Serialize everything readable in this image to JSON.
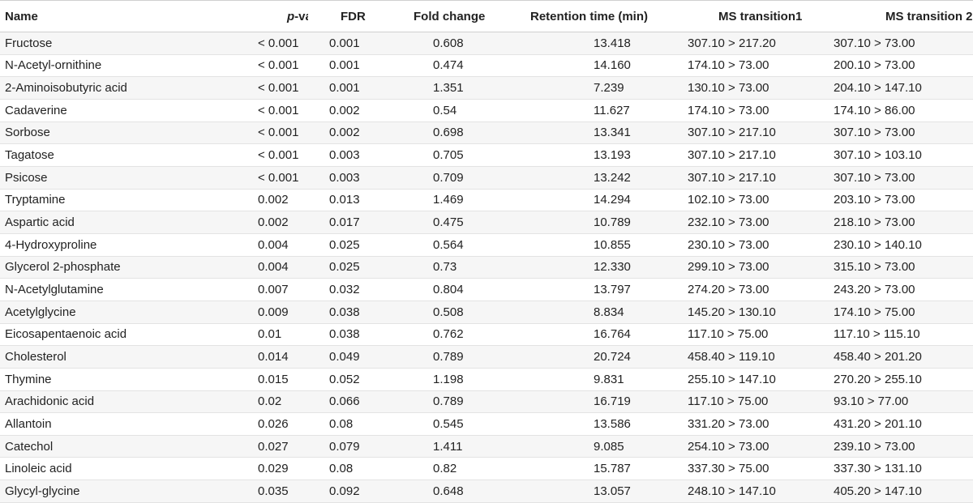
{
  "headers": {
    "name": "Name",
    "p_value_italic": "p",
    "p_value_rest": "-value",
    "fdr": "FDR",
    "fold_change": "Fold change",
    "retention_time": "Retention time (min)",
    "ms_transition1": "MS transition1",
    "ms_transition2": "MS transition 2"
  },
  "rows": [
    {
      "name": "Fructose",
      "p": "< 0.001",
      "fdr": "0.001",
      "fc": "0.608",
      "rt": "13.418",
      "ms1": "307.10 > 217.20",
      "ms2": "307.10 > 73.00"
    },
    {
      "name": "N-Acetyl-ornithine",
      "p": "< 0.001",
      "fdr": "0.001",
      "fc": "0.474",
      "rt": "14.160",
      "ms1": "174.10 > 73.00",
      "ms2": "200.10 > 73.00"
    },
    {
      "name": "2-Aminoisobutyric acid",
      "p": "< 0.001",
      "fdr": "0.001",
      "fc": "1.351",
      "rt": "7.239",
      "ms1": "130.10 > 73.00",
      "ms2": "204.10 > 147.10"
    },
    {
      "name": "Cadaverine",
      "p": "< 0.001",
      "fdr": "0.002",
      "fc": "0.54",
      "rt": "11.627",
      "ms1": "174.10 > 73.00",
      "ms2": "174.10 > 86.00"
    },
    {
      "name": "Sorbose",
      "p": "< 0.001",
      "fdr": "0.002",
      "fc": "0.698",
      "rt": "13.341",
      "ms1": "307.10 > 217.10",
      "ms2": "307.10 > 73.00"
    },
    {
      "name": "Tagatose",
      "p": "< 0.001",
      "fdr": "0.003",
      "fc": "0.705",
      "rt": "13.193",
      "ms1": "307.10 > 217.10",
      "ms2": "307.10 > 103.10"
    },
    {
      "name": "Psicose",
      "p": "< 0.001",
      "fdr": "0.003",
      "fc": "0.709",
      "rt": "13.242",
      "ms1": "307.10 > 217.10",
      "ms2": "307.10 > 73.00"
    },
    {
      "name": "Tryptamine",
      "p": "0.002",
      "fdr": "0.013",
      "fc": "1.469",
      "rt": "14.294",
      "ms1": "102.10 > 73.00",
      "ms2": "203.10 > 73.00"
    },
    {
      "name": "Aspartic acid",
      "p": "0.002",
      "fdr": "0.017",
      "fc": "0.475",
      "rt": "10.789",
      "ms1": "232.10 > 73.00",
      "ms2": "218.10 > 73.00"
    },
    {
      "name": "4-Hydroxyproline",
      "p": "0.004",
      "fdr": "0.025",
      "fc": "0.564",
      "rt": "10.855",
      "ms1": "230.10 > 73.00",
      "ms2": "230.10 > 140.10"
    },
    {
      "name": "Glycerol 2-phosphate",
      "p": "0.004",
      "fdr": "0.025",
      "fc": "0.73",
      "rt": "12.330",
      "ms1": "299.10 > 73.00",
      "ms2": "315.10 > 73.00"
    },
    {
      "name": "N-Acetylglutamine",
      "p": "0.007",
      "fdr": "0.032",
      "fc": "0.804",
      "rt": "13.797",
      "ms1": "274.20 > 73.00",
      "ms2": "243.20 > 73.00"
    },
    {
      "name": "Acetylglycine",
      "p": "0.009",
      "fdr": "0.038",
      "fc": "0.508",
      "rt": "8.834",
      "ms1": "145.20 > 130.10",
      "ms2": "174.10 > 75.00"
    },
    {
      "name": "Eicosapentaenoic acid",
      "p": "0.01",
      "fdr": "0.038",
      "fc": "0.762",
      "rt": "16.764",
      "ms1": "117.10 > 75.00",
      "ms2": "117.10 > 115.10"
    },
    {
      "name": "Cholesterol",
      "p": "0.014",
      "fdr": "0.049",
      "fc": "0.789",
      "rt": "20.724",
      "ms1": "458.40 > 119.10",
      "ms2": "458.40 > 201.20"
    },
    {
      "name": "Thymine",
      "p": "0.015",
      "fdr": "0.052",
      "fc": "1.198",
      "rt": "9.831",
      "ms1": "255.10 > 147.10",
      "ms2": "270.20 > 255.10"
    },
    {
      "name": "Arachidonic acid",
      "p": "0.02",
      "fdr": "0.066",
      "fc": "0.789",
      "rt": "16.719",
      "ms1": "117.10 > 75.00",
      "ms2": "93.10 > 77.00"
    },
    {
      "name": "Allantoin",
      "p": "0.026",
      "fdr": "0.08",
      "fc": "0.545",
      "rt": "13.586",
      "ms1": "331.20 > 73.00",
      "ms2": "431.20 > 201.10"
    },
    {
      "name": "Catechol",
      "p": "0.027",
      "fdr": "0.079",
      "fc": "1.411",
      "rt": "9.085",
      "ms1": "254.10 > 73.00",
      "ms2": "239.10 > 73.00"
    },
    {
      "name": "Linoleic acid",
      "p": "0.029",
      "fdr": "0.08",
      "fc": "0.82",
      "rt": "15.787",
      "ms1": "337.30 > 75.00",
      "ms2": "337.30 > 131.10"
    },
    {
      "name": "Glycyl-glycine",
      "p": "0.035",
      "fdr": "0.092",
      "fc": "0.648",
      "rt": "13.057",
      "ms1": "248.10 > 147.10",
      "ms2": "405.20 > 147.10"
    }
  ]
}
